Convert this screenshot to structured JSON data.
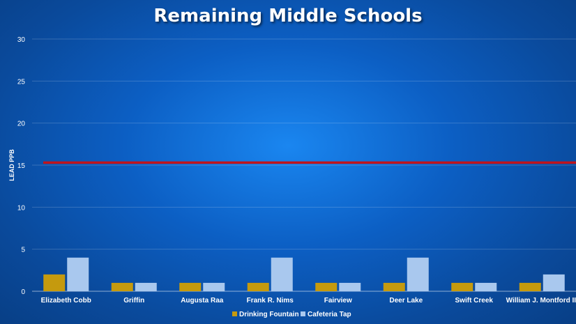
{
  "chart_data": {
    "type": "bar",
    "title": "Remaining Middle Schools",
    "xlabel": "",
    "ylabel": "LEAD  PPB",
    "ylim": [
      0,
      30
    ],
    "yticks": [
      0,
      5,
      10,
      15,
      20,
      25,
      30
    ],
    "grid": true,
    "legend_position": "bottom",
    "categories": [
      "Elizabeth Cobb",
      "Griffin",
      "Augusta Raa",
      "Frank R. Nims",
      "Fairview",
      "Deer Lake",
      "Swift Creek",
      "William J. Montford III"
    ],
    "series": [
      {
        "name": "Drinking Fountain",
        "color": "#c59a0e",
        "values": [
          2,
          1,
          1,
          1,
          1,
          1,
          1,
          1
        ]
      },
      {
        "name": "Cafeteria Tap",
        "color": "#a9c8ee",
        "values": [
          4,
          1,
          1,
          4,
          1,
          4,
          1,
          2
        ]
      }
    ],
    "threshold": {
      "value": 15.3,
      "color": "#c0141c"
    }
  }
}
